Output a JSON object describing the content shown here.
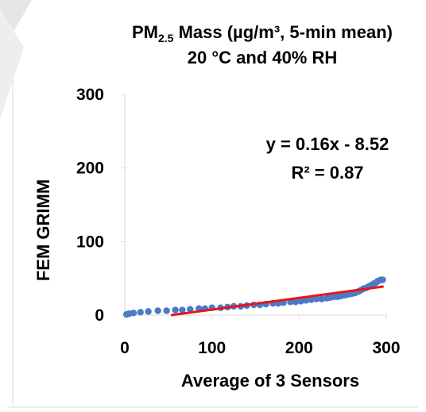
{
  "chart_data": {
    "type": "scatter",
    "title_main": "PM",
    "title_sub": "2.5",
    "title_rest": " Mass (µg/m³, 5-min mean)",
    "subtitle": "20 °C and 40% RH",
    "xlabel": "Average of 3 Sensors",
    "ylabel": "FEM GRIMM",
    "xlim": [
      0,
      300
    ],
    "ylim": [
      0,
      300
    ],
    "xticks": [
      "0",
      "100",
      "200",
      "300"
    ],
    "yticks": [
      "0",
      "100",
      "200",
      "300"
    ],
    "x_tick_values": [
      0,
      100,
      200,
      300
    ],
    "y_tick_values": [
      0,
      100,
      200,
      300
    ],
    "equation": "y = 0.16x - 8.52",
    "r_squared": "R² = 0.87",
    "trendline": {
      "slope": 0.16,
      "intercept": -8.52,
      "x_range": [
        53,
        297
      ],
      "color": "#e8141b"
    },
    "marker_color": "#4a7bc4",
    "grid": false,
    "legend": "none",
    "series": [
      {
        "x": [
          2,
          5,
          10,
          18,
          27,
          38,
          48,
          58,
          66,
          75,
          85,
          92,
          100,
          110,
          118,
          125,
          133,
          140,
          148,
          155,
          162,
          170,
          176,
          182,
          190,
          196,
          202,
          208,
          214,
          220,
          226,
          232,
          236,
          240,
          244,
          248,
          252,
          256,
          260,
          264,
          268,
          271,
          274,
          277,
          280,
          283,
          286,
          288,
          290,
          292,
          294,
          296
        ],
        "y": [
          1,
          2,
          3,
          4,
          5,
          6,
          6,
          7,
          7,
          8,
          9,
          9,
          10,
          10,
          11,
          12,
          12,
          13,
          14,
          14,
          15,
          16,
          16,
          17,
          18,
          18,
          19,
          20,
          21,
          22,
          22,
          23,
          24,
          25,
          25,
          26,
          27,
          28,
          29,
          30,
          32,
          34,
          36,
          37,
          39,
          41,
          43,
          44,
          46,
          47,
          48,
          48
        ]
      }
    ]
  }
}
